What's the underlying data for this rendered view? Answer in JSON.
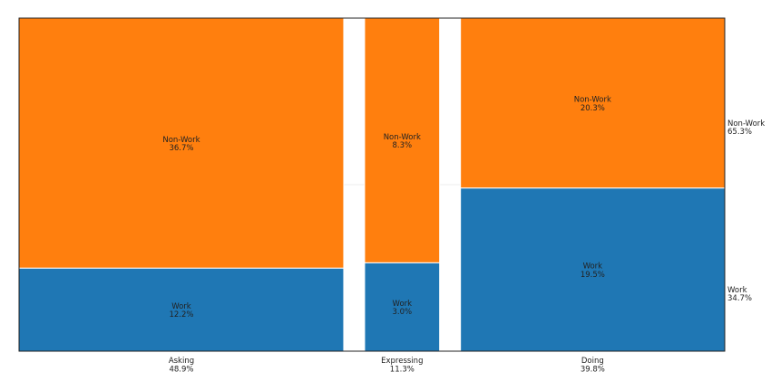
{
  "chart_data": {
    "type": "mosaic",
    "title": "",
    "categories": [
      {
        "name": "Asking",
        "share": "48.9%",
        "share_value": 48.9,
        "segments": [
          {
            "name": "Work",
            "label": "12.2%",
            "value": 12.2
          },
          {
            "name": "Non-Work",
            "label": "36.7%",
            "value": 36.7
          }
        ]
      },
      {
        "name": "Expressing",
        "share": "11.3%",
        "share_value": 11.3,
        "segments": [
          {
            "name": "Work",
            "label": "3.0%",
            "value": 3.0
          },
          {
            "name": "Non-Work",
            "label": "8.3%",
            "value": 8.3
          }
        ]
      },
      {
        "name": "Doing",
        "share": "39.8%",
        "share_value": 39.8,
        "segments": [
          {
            "name": "Work",
            "label": "19.5%",
            "value": 19.5
          },
          {
            "name": "Non-Work",
            "label": "20.3%",
            "value": 20.3
          }
        ]
      }
    ],
    "totals": [
      {
        "name": "Work",
        "label": "34.7%",
        "value": 34.7
      },
      {
        "name": "Non-Work",
        "label": "65.3%",
        "value": 65.3
      }
    ],
    "colors": {
      "Work": "#1f77b4",
      "Non-Work": "#ff7f0e"
    }
  }
}
